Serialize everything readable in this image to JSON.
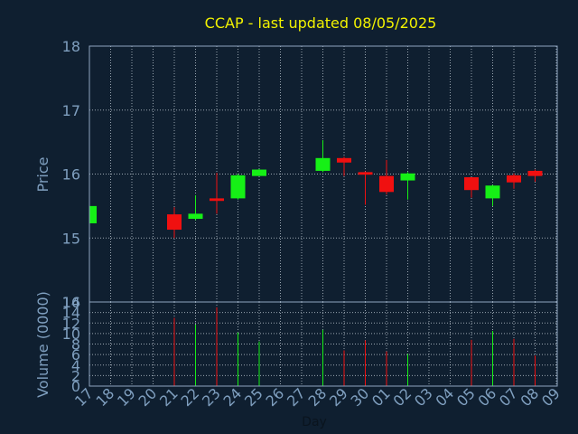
{
  "colors": {
    "background": "#0f1f30",
    "plot_background": "#0f1f30",
    "title": "#f2f200",
    "axis_text": "#7f9fbf",
    "axis_line": "#8fa5c0",
    "grid": "#c9d3dc",
    "up": "#16f016",
    "down": "#f01010",
    "label_dark": "#0a141e"
  },
  "chart_data": [
    {
      "type": "candlestick",
      "title": "CCAP - last updated 08/05/2025",
      "ylabel": "Price",
      "ylim": [
        14,
        18
      ],
      "yticks": [
        "14",
        "15",
        "16",
        "17",
        "18"
      ],
      "grid": true,
      "categories": [
        "17",
        "18",
        "19",
        "20",
        "21",
        "22",
        "23",
        "24",
        "25",
        "26",
        "27",
        "28",
        "29",
        "30",
        "01",
        "02",
        "03",
        "04",
        "05",
        "06",
        "07",
        "08",
        "09"
      ],
      "candles": [
        {
          "day": "17",
          "open": 15.23,
          "close": 15.5,
          "high": 15.5,
          "low": 15.23,
          "direction": "up"
        },
        {
          "day": "21",
          "open": 15.37,
          "close": 15.13,
          "high": 15.48,
          "low": 15.0,
          "direction": "down"
        },
        {
          "day": "22",
          "open": 15.3,
          "close": 15.38,
          "high": 15.67,
          "low": 15.28,
          "direction": "up"
        },
        {
          "day": "23",
          "open": 15.62,
          "close": 15.58,
          "high": 16.02,
          "low": 15.38,
          "direction": "down"
        },
        {
          "day": "24",
          "open": 15.62,
          "close": 15.98,
          "high": 16.0,
          "low": 15.6,
          "direction": "up"
        },
        {
          "day": "25",
          "open": 15.97,
          "close": 16.07,
          "high": 16.08,
          "low": 15.97,
          "direction": "up"
        },
        {
          "day": "28",
          "open": 16.05,
          "close": 16.25,
          "high": 16.53,
          "low": 16.03,
          "direction": "up"
        },
        {
          "day": "29",
          "open": 16.25,
          "close": 16.18,
          "high": 16.27,
          "low": 15.97,
          "direction": "down"
        },
        {
          "day": "30",
          "open": 16.03,
          "close": 15.99,
          "high": 16.04,
          "low": 15.52,
          "direction": "down"
        },
        {
          "day": "01",
          "open": 15.97,
          "close": 15.72,
          "high": 16.22,
          "low": 15.68,
          "direction": "down"
        },
        {
          "day": "02",
          "open": 15.9,
          "close": 16.01,
          "high": 16.03,
          "low": 15.6,
          "direction": "up"
        },
        {
          "day": "05",
          "open": 15.95,
          "close": 15.75,
          "high": 15.95,
          "low": 15.63,
          "direction": "down"
        },
        {
          "day": "06",
          "open": 15.62,
          "close": 15.82,
          "high": 15.83,
          "low": 15.5,
          "direction": "up"
        },
        {
          "day": "07",
          "open": 15.98,
          "close": 15.87,
          "high": 16.01,
          "low": 15.77,
          "direction": "down"
        },
        {
          "day": "08",
          "open": 16.05,
          "close": 15.97,
          "high": 16.07,
          "low": 15.88,
          "direction": "down"
        }
      ]
    },
    {
      "type": "bar",
      "ylabel": "Volume (0000)",
      "xlabel": "Day",
      "ylim": [
        0,
        16
      ],
      "yticks": [
        "0",
        "2",
        "4",
        "6",
        "8",
        "10",
        "12",
        "14",
        "16"
      ],
      "grid": true,
      "categories": [
        "17",
        "18",
        "19",
        "20",
        "21",
        "22",
        "23",
        "24",
        "25",
        "26",
        "27",
        "28",
        "29",
        "30",
        "01",
        "02",
        "03",
        "04",
        "05",
        "06",
        "07",
        "08",
        "09"
      ],
      "volumes": [
        {
          "day": "21",
          "value": 13.0,
          "direction": "down"
        },
        {
          "day": "22",
          "value": 11.7,
          "direction": "up"
        },
        {
          "day": "23",
          "value": 15.0,
          "direction": "down"
        },
        {
          "day": "24",
          "value": 10.2,
          "direction": "up"
        },
        {
          "day": "25",
          "value": 8.5,
          "direction": "up"
        },
        {
          "day": "28",
          "value": 10.7,
          "direction": "up"
        },
        {
          "day": "29",
          "value": 6.8,
          "direction": "down"
        },
        {
          "day": "30",
          "value": 8.7,
          "direction": "down"
        },
        {
          "day": "01",
          "value": 6.6,
          "direction": "down"
        },
        {
          "day": "02",
          "value": 6.1,
          "direction": "up"
        },
        {
          "day": "05",
          "value": 8.8,
          "direction": "down"
        },
        {
          "day": "06",
          "value": 10.5,
          "direction": "up"
        },
        {
          "day": "07",
          "value": 9.0,
          "direction": "down"
        },
        {
          "day": "08",
          "value": 5.8,
          "direction": "down"
        }
      ]
    }
  ]
}
